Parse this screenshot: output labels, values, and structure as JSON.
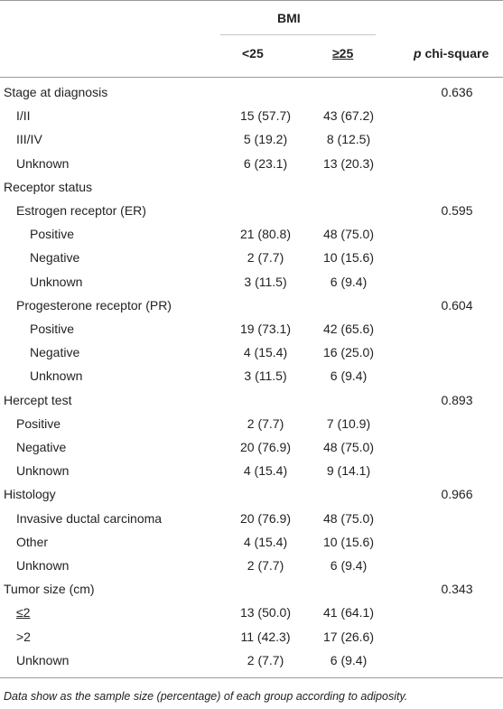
{
  "header": {
    "group_label": "BMI",
    "col1": "<25",
    "col2": "≥25",
    "col3_italic": "p",
    "col3_rest": " chi-square"
  },
  "rows": [
    {
      "label": "Stage at diagnosis",
      "indent": 0,
      "c1": "",
      "c2": "",
      "p": "0.636"
    },
    {
      "label": "I/II",
      "indent": 1,
      "c1": "15 (57.7)",
      "c2": "43 (67.2)",
      "p": ""
    },
    {
      "label": "III/IV",
      "indent": 1,
      "c1": "5 (19.2)",
      "c2": "8 (12.5)",
      "p": ""
    },
    {
      "label": "Unknown",
      "indent": 1,
      "c1": "6 (23.1)",
      "c2": "13 (20.3)",
      "p": ""
    },
    {
      "label": "Receptor status",
      "indent": 0,
      "c1": "",
      "c2": "",
      "p": ""
    },
    {
      "label": "Estrogen receptor (ER)",
      "indent": 1,
      "c1": "",
      "c2": "",
      "p": "0.595"
    },
    {
      "label": "Positive",
      "indent": 2,
      "c1": "21 (80.8)",
      "c2": "48 (75.0)",
      "p": ""
    },
    {
      "label": "Negative",
      "indent": 2,
      "c1": "2 (7.7)",
      "c2": "10 (15.6)",
      "p": ""
    },
    {
      "label": "Unknown",
      "indent": 2,
      "c1": "3 (11.5)",
      "c2": "6 (9.4)",
      "p": ""
    },
    {
      "label": "Progesterone receptor (PR)",
      "indent": 1,
      "c1": "",
      "c2": "",
      "p": "0.604"
    },
    {
      "label": "Positive",
      "indent": 2,
      "c1": "19 (73.1)",
      "c2": "42 (65.6)",
      "p": ""
    },
    {
      "label": "Negative",
      "indent": 2,
      "c1": "4 (15.4)",
      "c2": "16 (25.0)",
      "p": ""
    },
    {
      "label": "Unknown",
      "indent": 2,
      "c1": "3 (11.5)",
      "c2": "6 (9.4)",
      "p": ""
    },
    {
      "label": "Hercept test",
      "indent": 0,
      "c1": "",
      "c2": "",
      "p": "0.893"
    },
    {
      "label": "Positive",
      "indent": 1,
      "c1": "2 (7.7)",
      "c2": "7 (10.9)",
      "p": ""
    },
    {
      "label": "Negative",
      "indent": 1,
      "c1": "20 (76.9)",
      "c2": "48 (75.0)",
      "p": ""
    },
    {
      "label": "Unknown",
      "indent": 1,
      "c1": "4 (15.4)",
      "c2": "9 (14.1)",
      "p": ""
    },
    {
      "label": "Histology",
      "indent": 0,
      "c1": "",
      "c2": "",
      "p": "0.966"
    },
    {
      "label": "Invasive ductal carcinoma",
      "indent": 1,
      "c1": "20 (76.9)",
      "c2": "48 (75.0)",
      "p": ""
    },
    {
      "label": "Other",
      "indent": 1,
      "c1": "4 (15.4)",
      "c2": "10 (15.6)",
      "p": ""
    },
    {
      "label": "Unknown",
      "indent": 1,
      "c1": "2 (7.7)",
      "c2": "6 (9.4)",
      "p": ""
    },
    {
      "label": "Tumor size (cm)",
      "indent": 0,
      "c1": "",
      "c2": "",
      "p": "0.343"
    },
    {
      "label": "≤2",
      "indent": 1,
      "c1": "13 (50.0)",
      "c2": "41 (64.1)",
      "p": ""
    },
    {
      "label": ">2",
      "indent": 1,
      "c1": "11 (42.3)",
      "c2": "17 (26.6)",
      "p": ""
    },
    {
      "label": "Unknown",
      "indent": 1,
      "c1": "2 (7.7)",
      "c2": "6 (9.4)",
      "p": ""
    }
  ],
  "footnote": "Data show as the sample size (percentage) of each group according to adiposity."
}
